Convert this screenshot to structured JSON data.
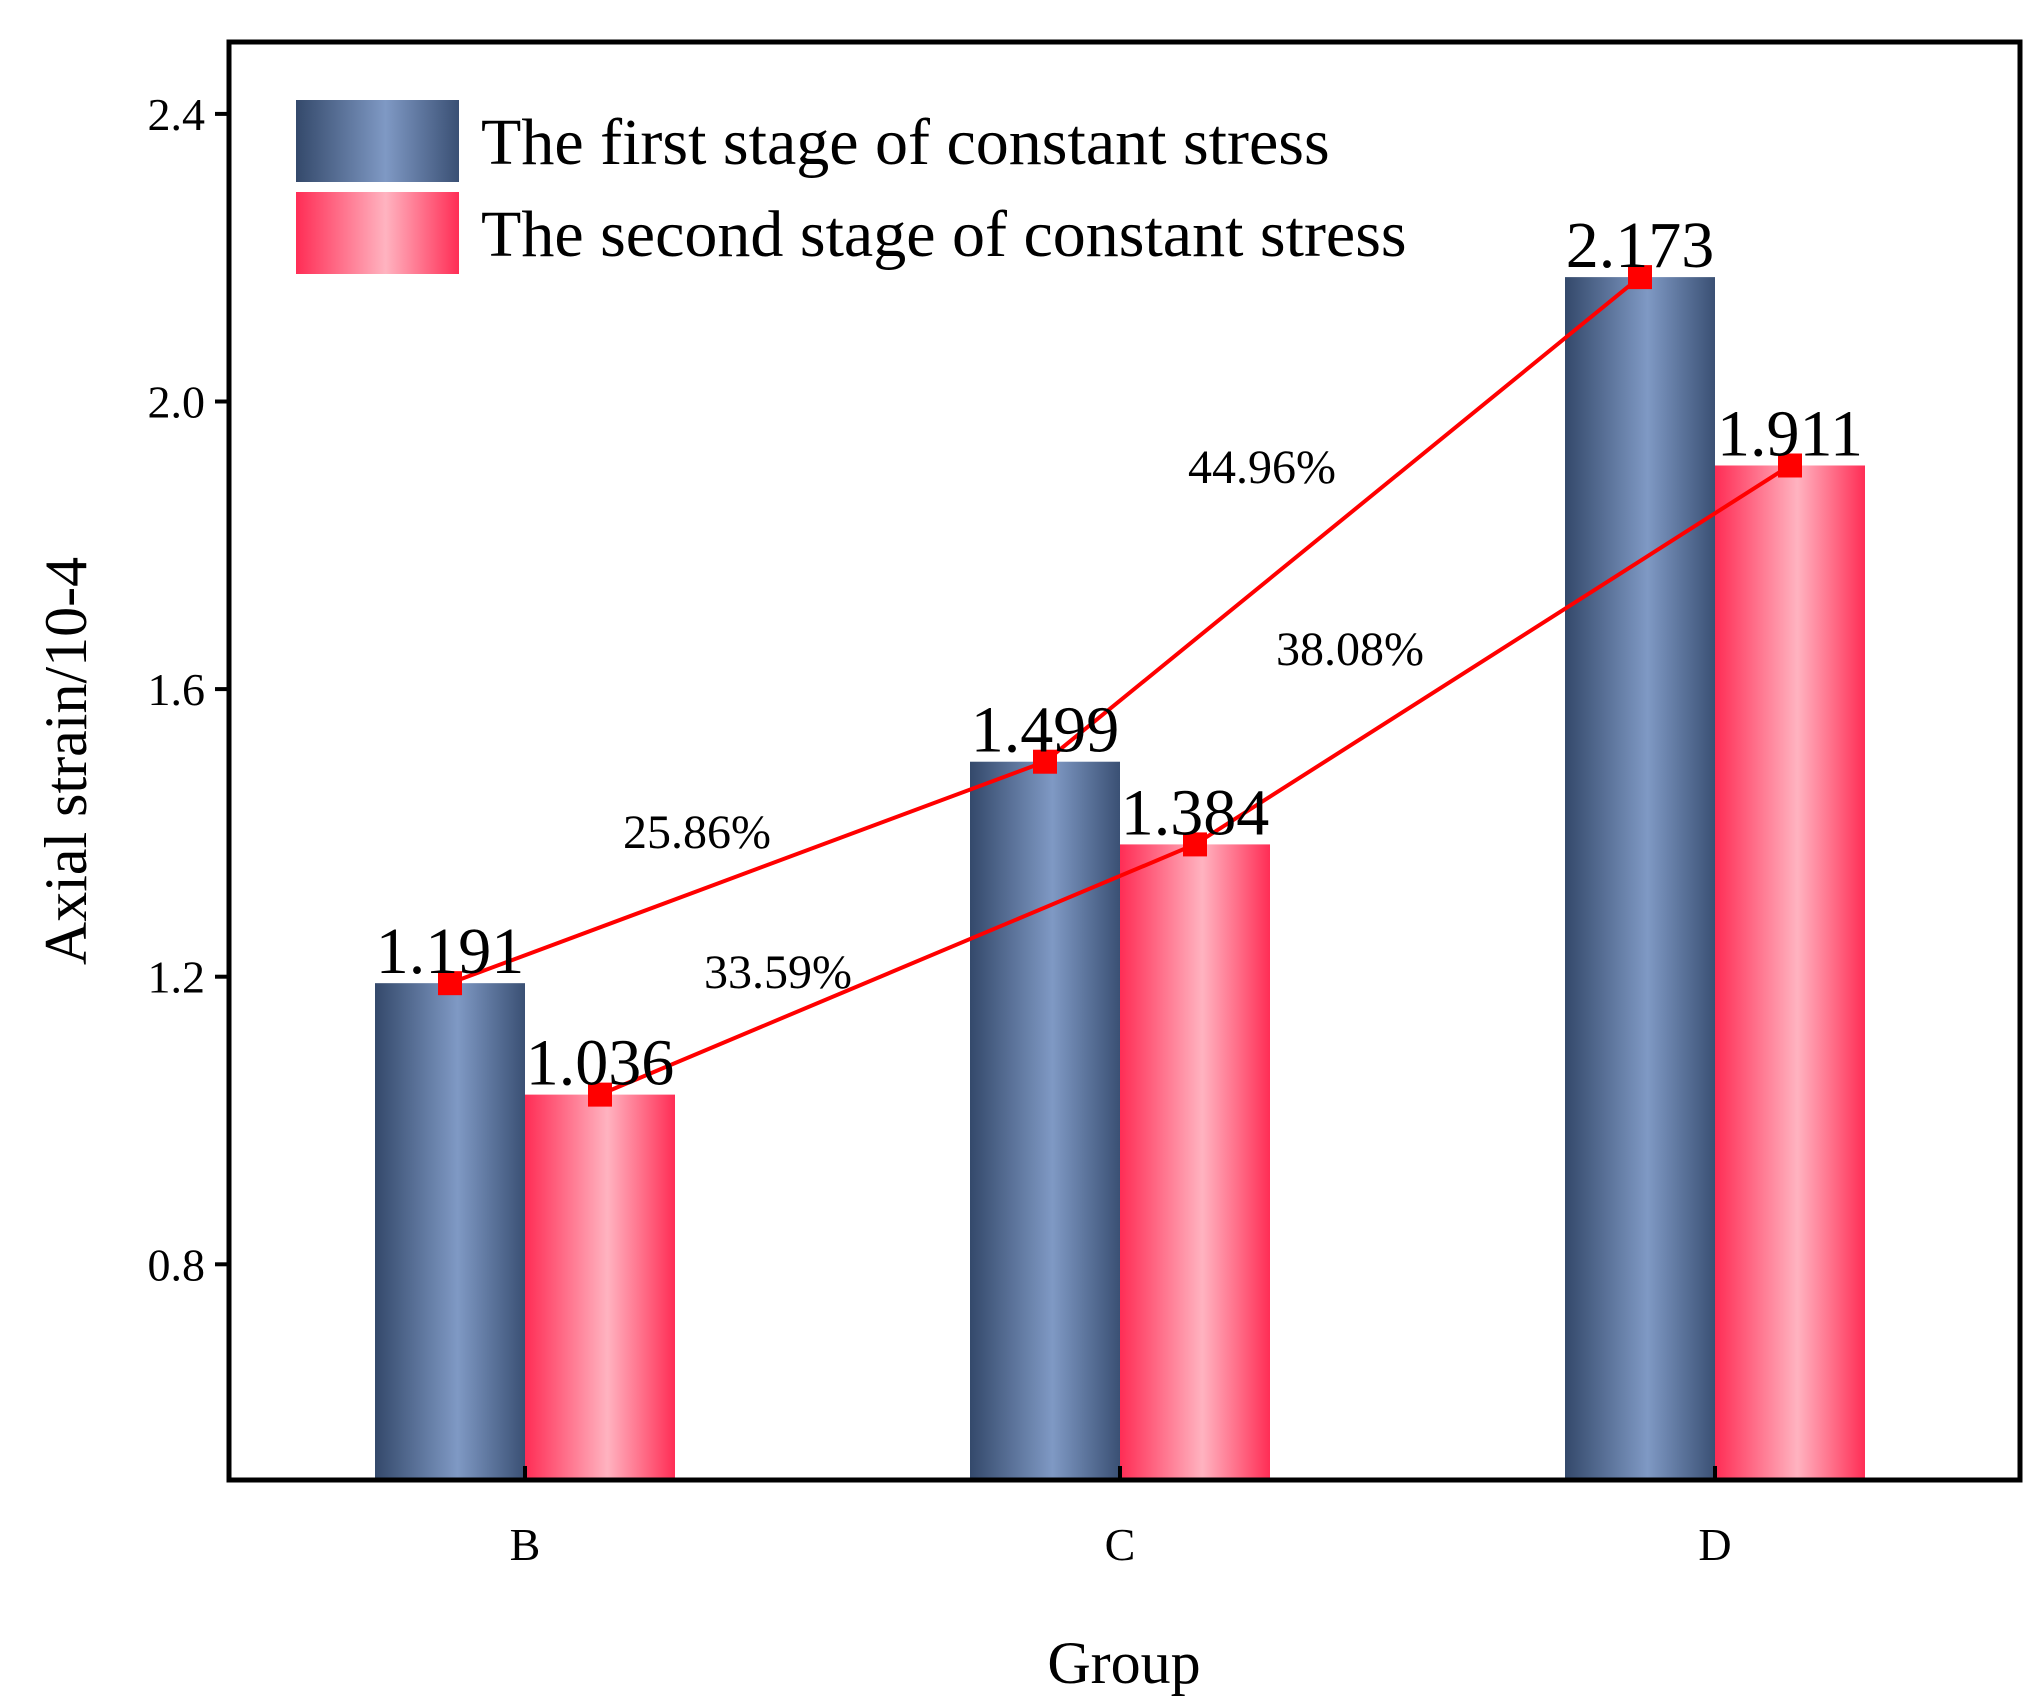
{
  "chart_data": {
    "type": "bar",
    "title": "",
    "xlabel": "Group",
    "ylabel": "Axial strain/10-4",
    "categories": [
      "B",
      "C",
      "D"
    ],
    "ylim": [
      0.5,
      2.5
    ],
    "yticks": [
      0.8,
      1.2,
      1.6,
      2.0,
      2.4
    ],
    "ytick_labels": [
      "0.8",
      "1.2",
      "1.6",
      "2.0",
      "2.4"
    ],
    "series": [
      {
        "name": "The first stage of constant stress",
        "values": [
          1.191,
          1.499,
          2.173
        ],
        "labels": [
          "1.191",
          "1.499",
          "2.173"
        ],
        "color": "#3a5074",
        "highlight": "#7f99c4"
      },
      {
        "name": "The second stage of constant stress",
        "values": [
          1.036,
          1.384,
          1.911
        ],
        "labels": [
          "1.036",
          "1.384",
          "1.911"
        ],
        "color": "#ff2d55",
        "highlight": "#ffb3c0"
      }
    ],
    "line_color": "#ff0000",
    "growth_labels": [
      {
        "series": 0,
        "between": [
          "B",
          "C"
        ],
        "text": "25.86%"
      },
      {
        "series": 0,
        "between": [
          "C",
          "D"
        ],
        "text": "44.96%"
      },
      {
        "series": 1,
        "between": [
          "B",
          "C"
        ],
        "text": "33.59%"
      },
      {
        "series": 1,
        "between": [
          "C",
          "D"
        ],
        "text": "38.08%"
      }
    ],
    "legend_position": "top-left"
  }
}
